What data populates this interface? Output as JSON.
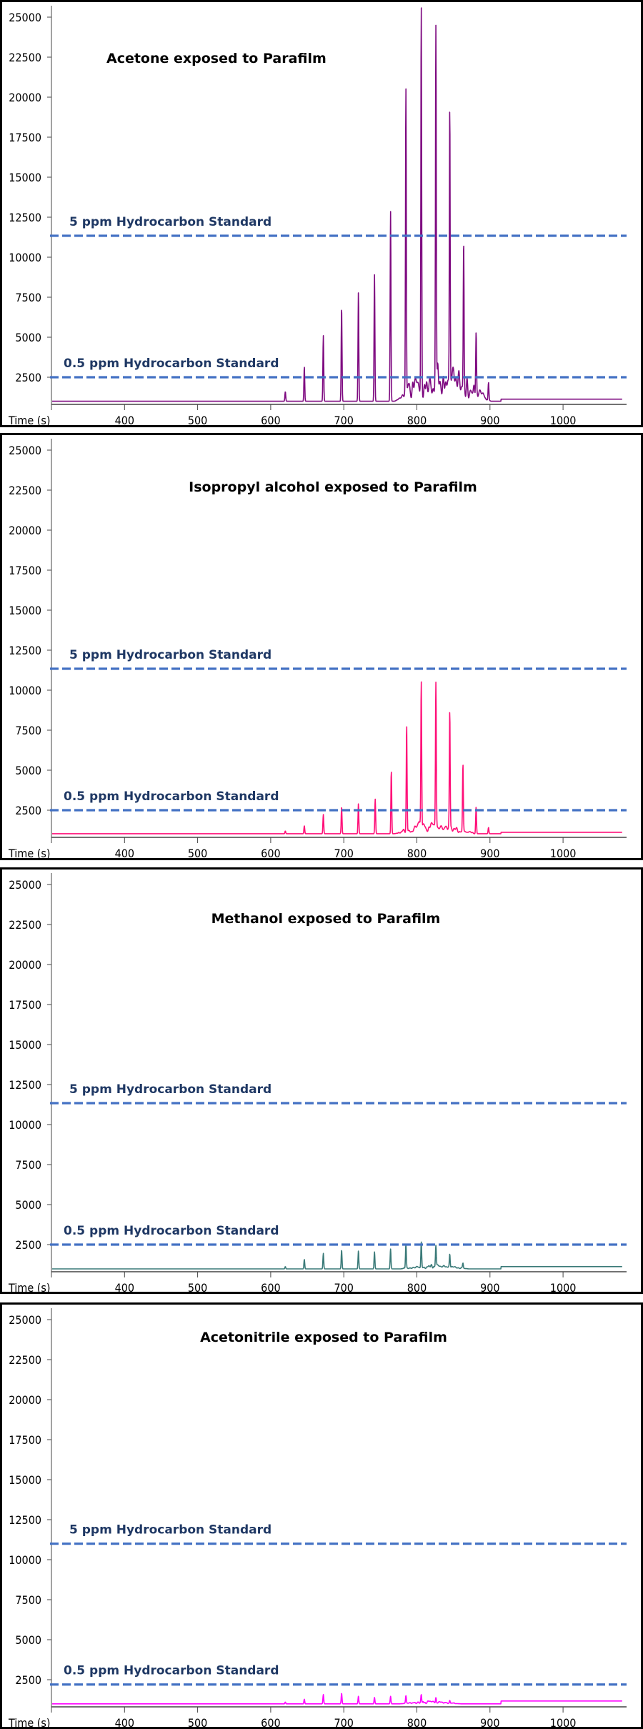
{
  "chart_data": [
    {
      "type": "line",
      "title": "Acetone exposed to Parafilm",
      "xlabel": "Time (s)",
      "ylabel": "",
      "xlim": [
        300,
        1087
      ],
      "ylim": [
        800,
        26070
      ],
      "xticks": [
        400,
        500,
        600,
        700,
        800,
        900,
        1000
      ],
      "yticks": [
        2500,
        5000,
        7500,
        10000,
        12500,
        15000,
        17500,
        20000,
        22500,
        25000
      ],
      "grid": false,
      "reference_lines": [
        {
          "label": "5 ppm Hydrocarbon Standard",
          "value": 11340,
          "color": "#4472C4"
        },
        {
          "label": "0.5 ppm Hydrocarbon Standard",
          "value": 2500,
          "color": "#4472C4"
        }
      ],
      "series": {
        "color": "#7E0A80",
        "baseline_before_915": 1000,
        "baseline_after_915": 1130,
        "peaks": [
          {
            "t": 620,
            "v": 1600
          },
          {
            "t": 646,
            "v": 3150
          },
          {
            "t": 672,
            "v": 5100
          },
          {
            "t": 697,
            "v": 6900
          },
          {
            "t": 720,
            "v": 7800
          },
          {
            "t": 742,
            "v": 8900
          },
          {
            "t": 764,
            "v": 12900
          },
          {
            "t": 785,
            "v": 19850
          },
          {
            "t": 806,
            "v": 24650
          },
          {
            "t": 826,
            "v": 23000
          },
          {
            "t": 845,
            "v": 18350
          },
          {
            "t": 864,
            "v": 10000
          },
          {
            "t": 881,
            "v": 4700
          },
          {
            "t": 898,
            "v": 2100
          }
        ],
        "hump": {
          "from": 770,
          "to": 900,
          "max": 3300
        }
      }
    },
    {
      "type": "line",
      "title": "Isopropyl alcohol exposed to Parafilm",
      "xlabel": "Time (s)",
      "ylabel": "",
      "xlim": [
        300,
        1087
      ],
      "ylim": [
        800,
        26070
      ],
      "xticks": [
        400,
        500,
        600,
        700,
        800,
        900,
        1000
      ],
      "yticks": [
        2500,
        5000,
        7500,
        10000,
        12500,
        15000,
        17500,
        20000,
        22500,
        25000
      ],
      "grid": false,
      "reference_lines": [
        {
          "label": "5 ppm Hydrocarbon Standard",
          "value": 11340,
          "color": "#4472C4"
        },
        {
          "label": "0.5 ppm Hydrocarbon Standard",
          "value": 2500,
          "color": "#4472C4"
        }
      ],
      "series": {
        "color": "#FF0F78",
        "baseline_before_915": 1030,
        "baseline_after_915": 1120,
        "peaks": [
          {
            "t": 620,
            "v": 1200
          },
          {
            "t": 646,
            "v": 1520
          },
          {
            "t": 672,
            "v": 2230
          },
          {
            "t": 697,
            "v": 2720
          },
          {
            "t": 720,
            "v": 2900
          },
          {
            "t": 743,
            "v": 3200
          },
          {
            "t": 765,
            "v": 4940
          },
          {
            "t": 786,
            "v": 7620
          },
          {
            "t": 806,
            "v": 10150
          },
          {
            "t": 826,
            "v": 9780
          },
          {
            "t": 845,
            "v": 8180
          },
          {
            "t": 863,
            "v": 5210
          },
          {
            "t": 881,
            "v": 2680
          },
          {
            "t": 898,
            "v": 1420
          }
        ],
        "hump": {
          "from": 770,
          "to": 880,
          "max": 1700
        }
      }
    },
    {
      "type": "line",
      "title": "Methanol exposed to Parafilm",
      "xlabel": "Time (s)",
      "ylabel": "",
      "xlim": [
        300,
        1087
      ],
      "ylim": [
        800,
        26070
      ],
      "xticks": [
        400,
        500,
        600,
        700,
        800,
        900,
        1000
      ],
      "yticks": [
        2500,
        5000,
        7500,
        10000,
        12500,
        15000,
        17500,
        20000,
        22500,
        25000
      ],
      "grid": false,
      "reference_lines": [
        {
          "label": "5 ppm Hydrocarbon Standard",
          "value": 11340,
          "color": "#4472C4"
        },
        {
          "label": "0.5 ppm Hydrocarbon Standard",
          "value": 2500,
          "color": "#4472C4"
        }
      ],
      "series": {
        "color": "#3A7A78",
        "baseline_before_915": 980,
        "baseline_after_915": 1125,
        "peaks": [
          {
            "t": 620,
            "v": 1125
          },
          {
            "t": 646,
            "v": 1570
          },
          {
            "t": 672,
            "v": 1950
          },
          {
            "t": 697,
            "v": 2170
          },
          {
            "t": 720,
            "v": 2100
          },
          {
            "t": 742,
            "v": 2040
          },
          {
            "t": 764,
            "v": 2230
          },
          {
            "t": 785,
            "v": 2480
          },
          {
            "t": 806,
            "v": 2570
          },
          {
            "t": 826,
            "v": 2230
          },
          {
            "t": 845,
            "v": 1790
          },
          {
            "t": 863,
            "v": 1300
          }
        ],
        "hump": {
          "from": 775,
          "to": 870,
          "max": 1250
        }
      }
    },
    {
      "type": "line",
      "title": "Acetonitrile exposed to Parafilm",
      "xlabel": "Time (s)",
      "ylabel": "",
      "xlim": [
        300,
        1087
      ],
      "ylim": [
        800,
        26070
      ],
      "xticks": [
        400,
        500,
        600,
        700,
        800,
        900,
        1000
      ],
      "yticks": [
        2500,
        5000,
        7500,
        10000,
        12500,
        15000,
        17500,
        20000,
        22500,
        25000
      ],
      "grid": false,
      "reference_lines": [
        {
          "label": "5 ppm Hydrocarbon Standard",
          "value": 11000,
          "color": "#4472C4"
        },
        {
          "label": "0.5 ppm Hydrocarbon Standard",
          "value": 2200,
          "color": "#4472C4"
        }
      ],
      "series": {
        "color": "#FF00FF",
        "baseline_before_915": 990,
        "baseline_after_915": 1170,
        "peaks": [
          {
            "t": 620,
            "v": 1100
          },
          {
            "t": 646,
            "v": 1280
          },
          {
            "t": 672,
            "v": 1570
          },
          {
            "t": 697,
            "v": 1660
          },
          {
            "t": 720,
            "v": 1460
          },
          {
            "t": 742,
            "v": 1390
          },
          {
            "t": 764,
            "v": 1460
          },
          {
            "t": 785,
            "v": 1460
          },
          {
            "t": 806,
            "v": 1460
          },
          {
            "t": 826,
            "v": 1320
          },
          {
            "t": 845,
            "v": 1160
          }
        ],
        "hump": {
          "from": 775,
          "to": 860,
          "max": 1150
        }
      }
    }
  ]
}
